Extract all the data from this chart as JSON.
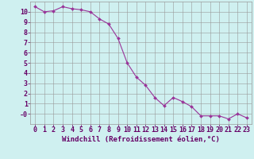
{
  "x": [
    0,
    1,
    2,
    3,
    4,
    5,
    6,
    7,
    8,
    9,
    10,
    11,
    12,
    13,
    14,
    15,
    16,
    17,
    18,
    19,
    20,
    21,
    22,
    23
  ],
  "y": [
    10.5,
    10.0,
    10.1,
    10.5,
    10.3,
    10.2,
    10.0,
    9.3,
    8.8,
    7.4,
    5.0,
    3.6,
    2.8,
    1.6,
    0.8,
    1.6,
    1.2,
    0.7,
    -0.2,
    -0.2,
    -0.2,
    -0.5,
    0.0,
    -0.4
  ],
  "line_color": "#993399",
  "marker_color": "#993399",
  "bg_color": "#cff0f0",
  "grid_color": "#999999",
  "font_color": "#660066",
  "xlabel": "Windchill (Refroidissement éolien,°C)",
  "xlim": [
    -0.5,
    23.5
  ],
  "ylim": [
    -1.0,
    11.0
  ],
  "xticks": [
    0,
    1,
    2,
    3,
    4,
    5,
    6,
    7,
    8,
    9,
    10,
    11,
    12,
    13,
    14,
    15,
    16,
    17,
    18,
    19,
    20,
    21,
    22,
    23
  ],
  "ytick_vals": [
    0,
    1,
    2,
    3,
    4,
    5,
    6,
    7,
    8,
    9,
    10
  ],
  "ytick_labs": [
    "-0",
    "1",
    "2",
    "3",
    "4",
    "5",
    "6",
    "7",
    "8",
    "9",
    "10"
  ],
  "tick_fontsize": 6.0,
  "label_fontsize": 6.5,
  "linewidth": 0.8,
  "markersize": 2.0
}
